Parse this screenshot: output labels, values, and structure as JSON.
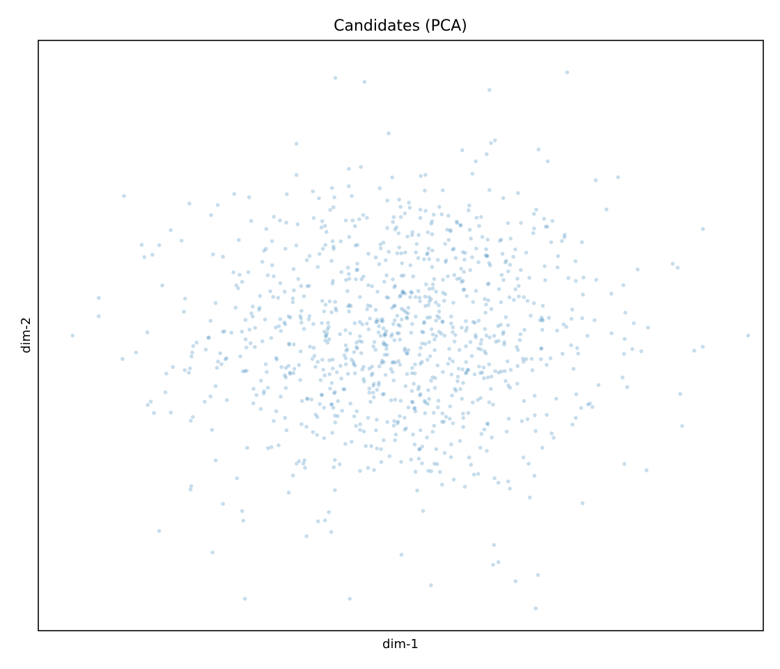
{
  "chart_data": {
    "type": "scatter",
    "title": "Candidates (PCA)",
    "xlabel": "dim-1",
    "ylabel": "dim-2",
    "xlim": [
      -3.6,
      3.6
    ],
    "ylim": [
      -3.7,
      3.7
    ],
    "grid": false,
    "ticks_visible": false,
    "marker_color": "#1f77b4",
    "marker_opacity": 0.25,
    "series": [
      {
        "n_points": 1000,
        "distribution": "isotropic gaussian, mean (0,0), std 1",
        "outliers": [
          {
            "x": -3.26,
            "y": 0.0
          },
          {
            "x": 3.45,
            "y": 0.0
          },
          {
            "x": -2.75,
            "y": 1.75
          },
          {
            "x": 2.7,
            "y": 0.9
          },
          {
            "x": 2.75,
            "y": 0.85
          },
          {
            "x": -2.4,
            "y": -2.45
          },
          {
            "x": -1.87,
            "y": -2.72
          },
          {
            "x": 0.88,
            "y": 3.08
          },
          {
            "x": 0.3,
            "y": -3.13
          },
          {
            "x": 1.34,
            "y": -3.42
          },
          {
            "x": 1.14,
            "y": -3.08
          },
          {
            "x": -0.65,
            "y": 3.23
          },
          {
            "x": -0.36,
            "y": 3.18
          },
          {
            "x": 0.97,
            "y": -2.84
          },
          {
            "x": 2.44,
            "y": -1.69
          },
          {
            "x": 2.22,
            "y": -1.61
          }
        ]
      }
    ]
  }
}
